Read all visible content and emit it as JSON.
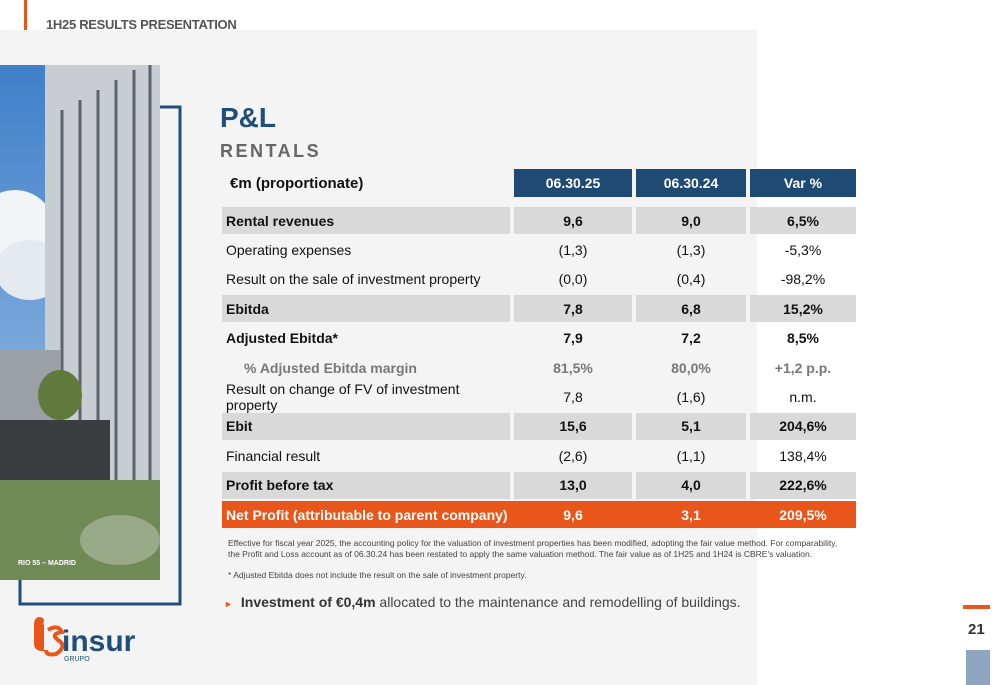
{
  "header": {
    "title": "1H25 RESULTS PRESENTATION"
  },
  "photo_caption": "RIO 55 – MADRID",
  "title": "P&L",
  "subtitle": "RENTALS",
  "table": {
    "columns": [
      "€m (proportionate)",
      "06.30.25",
      "06.30.24",
      "Var %"
    ],
    "rows": [
      [
        "Rental revenues",
        "9,6",
        "9,0",
        "6,5%"
      ],
      [
        "Operating expenses",
        "(1,3)",
        "(1,3)",
        "-5,3%"
      ],
      [
        "Result on the sale of investment property",
        "(0,0)",
        "(0,4)",
        "-98,2%"
      ],
      [
        "Ebitda",
        "7,8",
        "6,8",
        "15,2%"
      ],
      [
        "Adjusted Ebitda*",
        "7,9",
        "7,2",
        "8,5%"
      ],
      [
        "% Adjusted Ebitda margin",
        "81,5%",
        "80,0%",
        "+1,2 p.p."
      ],
      [
        "Result on change of FV of investment property",
        "7,8",
        "(1,6)",
        "n.m."
      ],
      [
        "Ebit",
        "15,6",
        "5,1",
        "204,6%"
      ],
      [
        "Financial result",
        "(2,6)",
        "(1,1)",
        "138,4%"
      ],
      [
        "Profit before tax",
        "13,0",
        "4,0",
        "222,6%"
      ],
      [
        "Net Profit (attributable to parent company)",
        "9,6",
        "3,1",
        "209,5%"
      ]
    ]
  },
  "footnotes": [
    "Effective for fiscal year 2025, the accounting policy for the valuation of investment properties has been modified, adopting the fair value method. For comparability, the Profit and Loss account as of 06.30.24 has been restated to apply the same valuation method. The fair value as of 1H25 and 1H24 is CBRE's valuation.",
    "* Adjusted Ebitda does not include the result on the sale of investment property."
  ],
  "bullet": {
    "bold": "Investment of €0,4m",
    "text": " allocated to the maintenance and remodelling of buildings."
  },
  "logo": {
    "name": "insur",
    "sub": "GRUPO"
  },
  "page_number": "21"
}
